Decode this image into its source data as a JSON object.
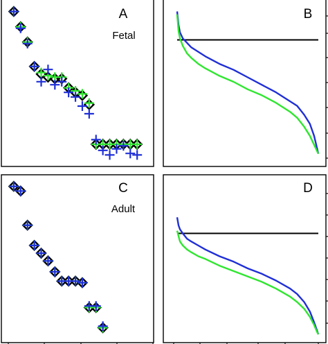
{
  "colors": {
    "black": "#000000",
    "blue": "#1f2fd6",
    "green": "#2fe62f",
    "frame": "#000000",
    "background": "#ffffff"
  },
  "chart_data": [
    {
      "type": "scatter",
      "panel_letter": "A",
      "annotation": "Fetal",
      "title": "",
      "xlabel": "",
      "ylabel": "",
      "xlim": [
        0,
        21
      ],
      "ylim": [
        0,
        1
      ],
      "grid": false,
      "series": [
        {
          "color": "black",
          "marker": "diamond",
          "x": [
            1,
            2,
            3,
            4,
            5,
            6,
            7,
            8,
            9,
            10,
            11,
            12,
            13,
            14,
            15,
            16,
            17,
            18,
            19
          ],
          "y": [
            0.97,
            0.87,
            0.77,
            0.61,
            0.56,
            0.54,
            0.53,
            0.53,
            0.47,
            0.44,
            0.42,
            0.36,
            0.1,
            0.1,
            0.1,
            0.1,
            0.1,
            0.1,
            0.1
          ]
        },
        {
          "color": "green",
          "marker": "plus",
          "x": [
            1,
            2,
            3,
            4,
            5,
            6,
            7,
            8,
            9,
            10,
            11,
            12,
            13,
            14,
            15,
            16,
            17,
            18,
            19
          ],
          "y": [
            0.97,
            0.87,
            0.77,
            0.61,
            0.57,
            0.55,
            0.54,
            0.54,
            0.47,
            0.45,
            0.43,
            0.37,
            0.1,
            0.1,
            0.1,
            0.1,
            0.1,
            0.1,
            0.1
          ]
        },
        {
          "color": "blue",
          "marker": "plus",
          "x": [
            1,
            2,
            3,
            4,
            5,
            6,
            7,
            8,
            9,
            10,
            11,
            12,
            13,
            14,
            15,
            16,
            17,
            18,
            19
          ],
          "y": [
            0.97,
            0.86,
            0.76,
            0.61,
            0.51,
            0.59,
            0.49,
            0.51,
            0.44,
            0.41,
            0.35,
            0.3,
            0.13,
            0.06,
            0.03,
            0.07,
            0.09,
            0.04,
            0.03
          ]
        }
      ]
    },
    {
      "type": "line",
      "panel_letter": "B",
      "title": "",
      "xlabel": "",
      "ylabel": "",
      "xlim": [
        0,
        1
      ],
      "ylim": [
        0,
        1
      ],
      "grid": false,
      "hline": 0.78,
      "series": [
        {
          "color": "blue",
          "x": [
            0.0,
            0.01,
            0.02,
            0.04,
            0.07,
            0.1,
            0.15,
            0.2,
            0.3,
            0.4,
            0.5,
            0.6,
            0.7,
            0.8,
            0.85,
            0.9,
            0.94,
            0.97,
            0.99,
            1.0
          ],
          "y": [
            0.97,
            0.88,
            0.83,
            0.79,
            0.76,
            0.73,
            0.7,
            0.67,
            0.62,
            0.58,
            0.53,
            0.48,
            0.43,
            0.37,
            0.34,
            0.28,
            0.22,
            0.14,
            0.06,
            0.02
          ]
        },
        {
          "color": "green",
          "x": [
            0.0,
            0.01,
            0.02,
            0.04,
            0.07,
            0.1,
            0.15,
            0.2,
            0.3,
            0.4,
            0.5,
            0.6,
            0.7,
            0.8,
            0.85,
            0.9,
            0.94,
            0.97,
            0.99,
            1.0
          ],
          "y": [
            0.95,
            0.84,
            0.79,
            0.74,
            0.69,
            0.66,
            0.62,
            0.59,
            0.54,
            0.5,
            0.45,
            0.41,
            0.36,
            0.3,
            0.26,
            0.2,
            0.14,
            0.08,
            0.04,
            0.02
          ]
        }
      ]
    },
    {
      "type": "scatter",
      "panel_letter": "C",
      "annotation": "Adult",
      "title": "",
      "xlabel": "",
      "ylabel": "",
      "xlim": [
        0,
        21
      ],
      "ylim": [
        0,
        1
      ],
      "grid": false,
      "series": [
        {
          "color": "black",
          "marker": "diamond",
          "x": [
            1,
            2,
            3,
            4,
            5,
            6,
            7,
            8,
            9,
            10,
            11,
            12,
            13,
            14
          ],
          "y": [
            0.97,
            0.94,
            0.72,
            0.59,
            0.54,
            0.49,
            0.42,
            0.36,
            0.36,
            0.36,
            0.35,
            0.19,
            0.19,
            0.06
          ]
        },
        {
          "color": "green",
          "marker": "plus",
          "x": [
            1,
            2,
            3,
            4,
            5,
            6,
            7,
            8,
            9,
            10,
            11,
            12,
            13,
            14
          ],
          "y": [
            0.97,
            0.94,
            0.72,
            0.59,
            0.54,
            0.49,
            0.42,
            0.36,
            0.36,
            0.36,
            0.35,
            0.19,
            0.19,
            0.06
          ]
        },
        {
          "color": "blue",
          "marker": "plus",
          "x": [
            1,
            2,
            3,
            4,
            5,
            6,
            7,
            8,
            9,
            10,
            11,
            12,
            13,
            14
          ],
          "y": [
            0.97,
            0.94,
            0.72,
            0.59,
            0.54,
            0.49,
            0.42,
            0.36,
            0.36,
            0.36,
            0.35,
            0.2,
            0.2,
            0.07
          ]
        }
      ]
    },
    {
      "type": "line",
      "panel_letter": "D",
      "title": "",
      "xlabel": "",
      "ylabel": "",
      "xlim": [
        0,
        1
      ],
      "ylim": [
        0,
        1
      ],
      "grid": false,
      "hline": 0.76,
      "series": [
        {
          "color": "blue",
          "x": [
            0.0,
            0.01,
            0.02,
            0.04,
            0.07,
            0.1,
            0.15,
            0.2,
            0.3,
            0.4,
            0.5,
            0.6,
            0.7,
            0.8,
            0.85,
            0.9,
            0.94,
            0.97,
            0.99,
            1.0
          ],
          "y": [
            0.88,
            0.82,
            0.79,
            0.76,
            0.72,
            0.7,
            0.67,
            0.64,
            0.59,
            0.55,
            0.5,
            0.46,
            0.41,
            0.35,
            0.31,
            0.25,
            0.18,
            0.1,
            0.04,
            0.01
          ]
        },
        {
          "color": "green",
          "x": [
            0.0,
            0.01,
            0.02,
            0.04,
            0.07,
            0.1,
            0.15,
            0.2,
            0.3,
            0.4,
            0.5,
            0.6,
            0.7,
            0.8,
            0.85,
            0.9,
            0.94,
            0.97,
            0.99,
            1.0
          ],
          "y": [
            0.78,
            0.74,
            0.7,
            0.67,
            0.64,
            0.62,
            0.59,
            0.57,
            0.52,
            0.48,
            0.44,
            0.4,
            0.35,
            0.29,
            0.25,
            0.2,
            0.14,
            0.08,
            0.03,
            0.01
          ]
        }
      ]
    }
  ]
}
